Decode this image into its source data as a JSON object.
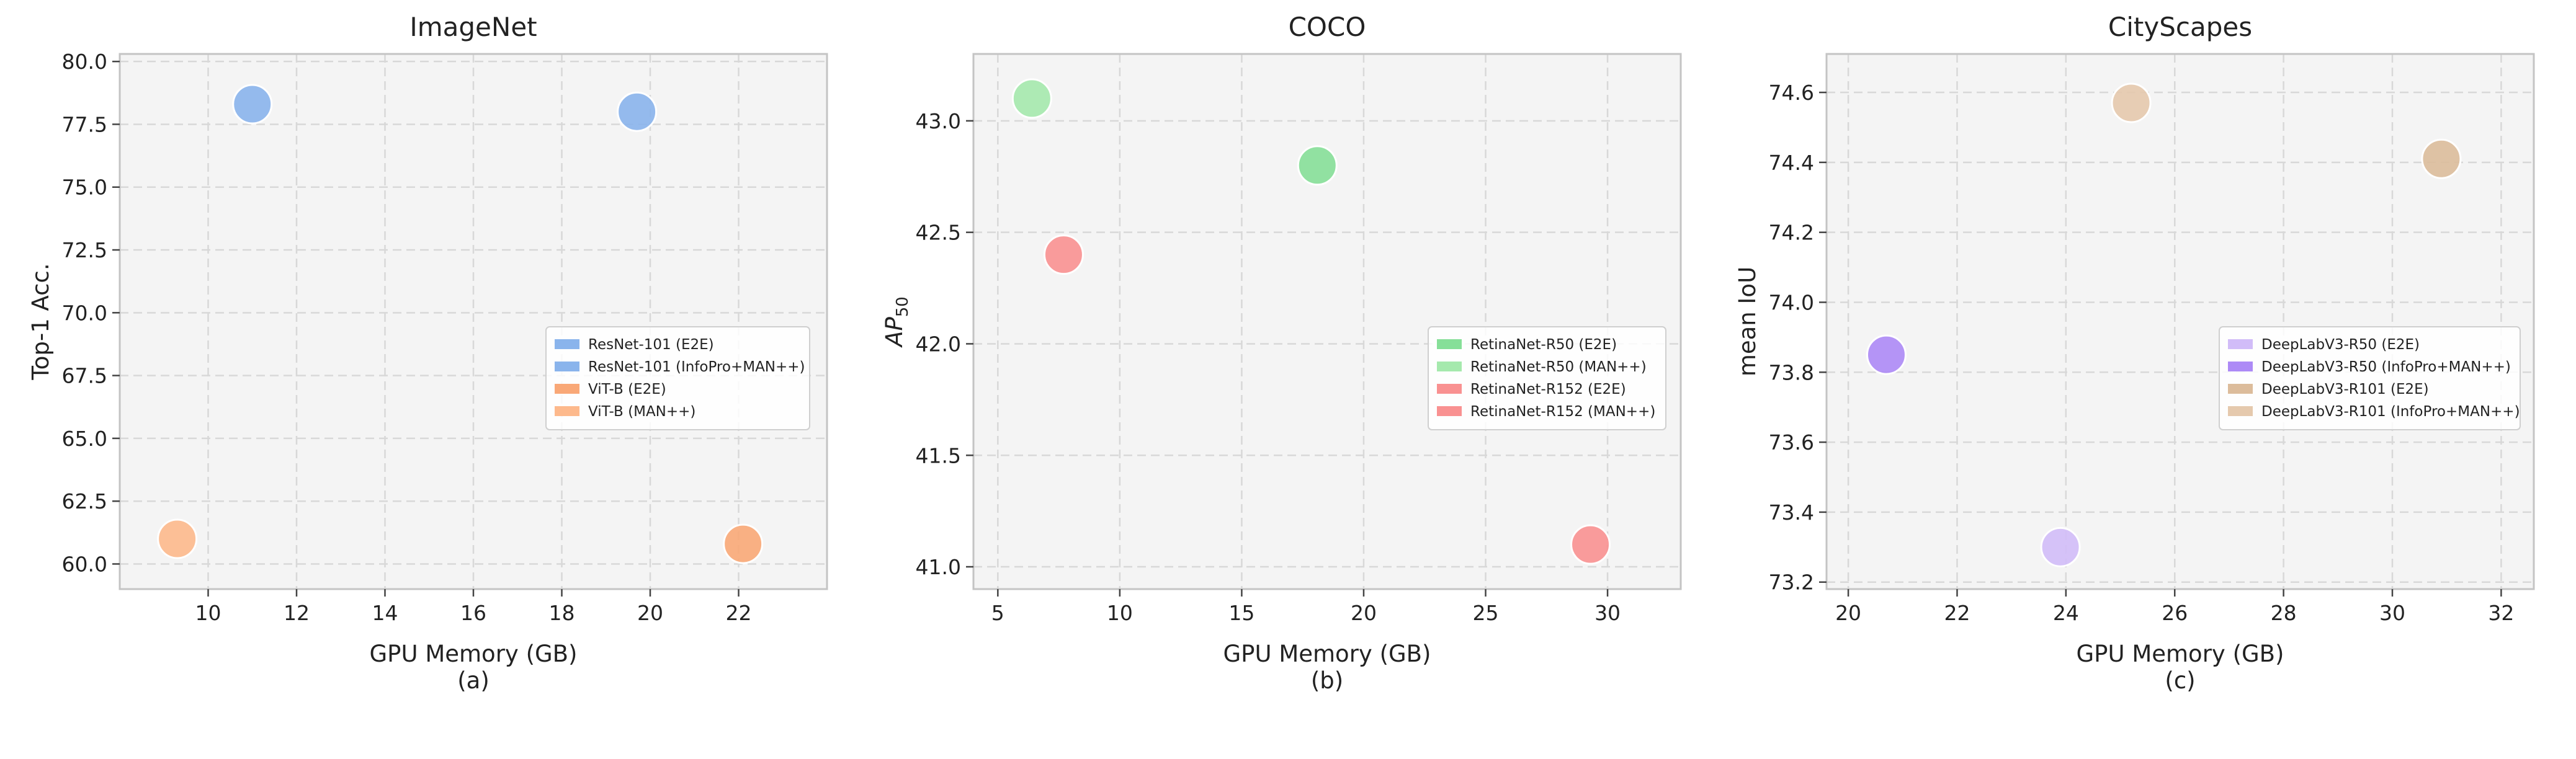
{
  "chart_data": [
    {
      "type": "scatter",
      "title": "ImageNet",
      "xlabel": "GPU Memory (GB)",
      "sublabel": "(a)",
      "ylabel": "Top-1 Acc.",
      "xlim": [
        8.0,
        24.0
      ],
      "ylim": [
        59.0,
        80.3
      ],
      "xticks": [
        10,
        12,
        14,
        16,
        18,
        20,
        22
      ],
      "yticks": [
        60.0,
        62.5,
        65.0,
        67.5,
        70.0,
        72.5,
        75.0,
        77.5,
        80.0
      ],
      "xtick_labels": [
        "10",
        "12",
        "14",
        "16",
        "18",
        "20",
        "22"
      ],
      "ytick_labels": [
        "60.0",
        "62.5",
        "65.0",
        "67.5",
        "70.0",
        "72.5",
        "75.0",
        "77.5",
        "80.0"
      ],
      "series": [
        {
          "name": "ResNet-101 (E2E)",
          "color": "#8ab4ec",
          "x": [
            11.0
          ],
          "y": [
            78.3
          ]
        },
        {
          "name": "ResNet-101 (InfoPro+MAN++)",
          "color": "#8ab4ec",
          "x": [
            19.7
          ],
          "y": [
            78.0
          ]
        },
        {
          "name": "ViT-B (E2E)",
          "color": "#f9a877",
          "x": [
            22.1
          ],
          "y": [
            60.8
          ]
        },
        {
          "name": "ViT-B (MAN++)",
          "color": "#fdb98c",
          "x": [
            9.3
          ],
          "y": [
            61.0
          ]
        }
      ]
    },
    {
      "type": "scatter",
      "title": "COCO",
      "xlabel": "GPU Memory (GB)",
      "sublabel": "(b)",
      "ylabel_main": "AP",
      "ylabel_sub": "50",
      "xlim": [
        4.0,
        33.0
      ],
      "ylim": [
        40.9,
        43.3
      ],
      "xticks": [
        5,
        10,
        15,
        20,
        25,
        30
      ],
      "yticks": [
        41.0,
        41.5,
        42.0,
        42.5,
        43.0
      ],
      "xtick_labels": [
        "5",
        "10",
        "15",
        "20",
        "25",
        "30"
      ],
      "ytick_labels": [
        "41.0",
        "41.5",
        "42.0",
        "42.5",
        "43.0"
      ],
      "series": [
        {
          "name": "RetinaNet-R50 (E2E)",
          "color": "#86df98",
          "x": [
            18.1
          ],
          "y": [
            42.8
          ]
        },
        {
          "name": "RetinaNet-R50 (MAN++)",
          "color": "#a5e9ad",
          "x": [
            6.4
          ],
          "y": [
            43.1
          ]
        },
        {
          "name": "RetinaNet-R152 (E2E)",
          "color": "#f99191",
          "x": [
            29.3
          ],
          "y": [
            41.1
          ]
        },
        {
          "name": "RetinaNet-R152 (MAN++)",
          "color": "#f99191",
          "x": [
            7.7
          ],
          "y": [
            42.4
          ]
        }
      ]
    },
    {
      "type": "scatter",
      "title": "CityScapes",
      "xlabel": "GPU Memory (GB)",
      "sublabel": "(c)",
      "ylabel": "mean IoU",
      "xlim": [
        19.6,
        32.6
      ],
      "ylim": [
        73.18,
        74.71
      ],
      "xticks": [
        20,
        22,
        24,
        26,
        28,
        30,
        32
      ],
      "yticks": [
        73.2,
        73.4,
        73.6,
        73.8,
        74.0,
        74.2,
        74.4,
        74.6
      ],
      "xtick_labels": [
        "20",
        "22",
        "24",
        "26",
        "28",
        "30",
        "32"
      ],
      "ytick_labels": [
        "73.2",
        "73.4",
        "73.6",
        "73.8",
        "74.0",
        "74.2",
        "74.4",
        "74.6"
      ],
      "series": [
        {
          "name": "DeepLabV3-R50 (E2E)",
          "color": "#d1bcf8",
          "x": [
            23.9
          ],
          "y": [
            73.3
          ]
        },
        {
          "name": "DeepLabV3-R50 (InfoPro+MAN++)",
          "color": "#ad8af6",
          "x": [
            20.7
          ],
          "y": [
            73.85
          ]
        },
        {
          "name": "DeepLabV3-R101 (E2E)",
          "color": "#dcbc9b",
          "x": [
            30.9
          ],
          "y": [
            74.41
          ]
        },
        {
          "name": "DeepLabV3-R101 (InfoPro+MAN++)",
          "color": "#e5c9ad",
          "x": [
            25.2
          ],
          "y": [
            74.57
          ]
        }
      ]
    }
  ]
}
